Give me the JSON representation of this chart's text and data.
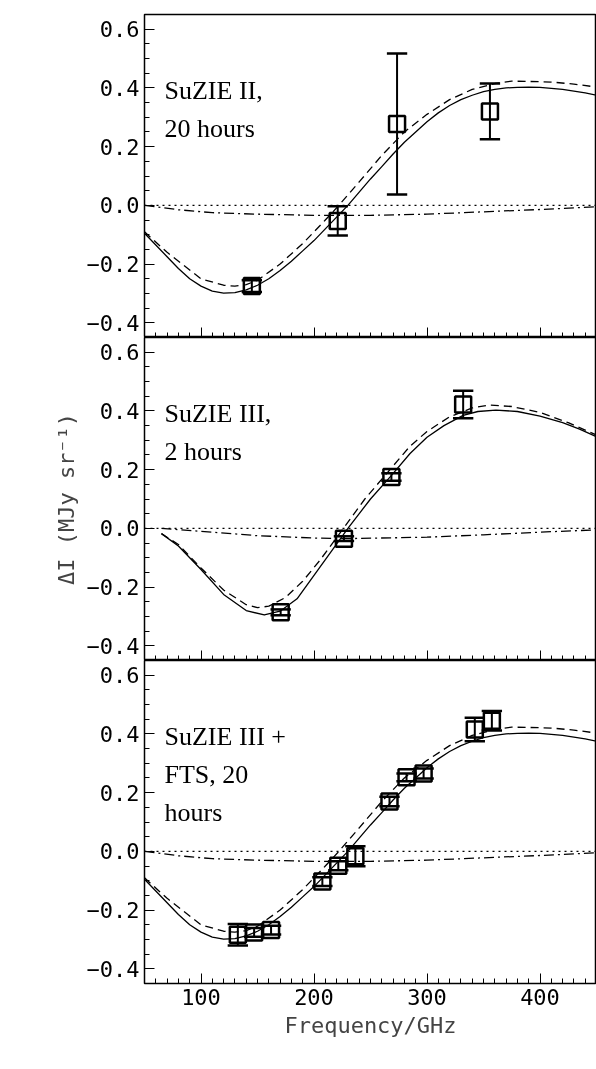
{
  "chart_data": [
    {
      "type": "scatter",
      "annotations": [
        "SuZIE II,\n20 hours"
      ],
      "xlim": [
        50,
        450
      ],
      "ylim": [
        -0.45,
        0.65
      ],
      "xticks": [
        100,
        200,
        300,
        400
      ],
      "yticks": [
        {
          "value": -0.4,
          "label": "−0.4"
        },
        {
          "value": -0.2,
          "label": "−0.2"
        },
        {
          "value": 0,
          "label": "0.0"
        },
        0.2,
        0.4,
        0.6
      ],
      "tick_labels": "y",
      "ref_lines": [
        {
          "axis": "y",
          "value": 0,
          "line_style": "dotted",
          "color": "#000000"
        }
      ],
      "series": [
        {
          "marker": "square",
          "color": "#000000",
          "x": [
            145,
            221,
            273.5,
            355.7
          ],
          "values": [
            -0.275,
            -0.053,
            0.277,
            0.32
          ],
          "errors": [
            0.02,
            0.05,
            0.24,
            0.095
          ]
        },
        {
          "type": "line",
          "line_style": "solid",
          "color": "#000000",
          "x": [
            50,
            60,
            70,
            80,
            90,
            100,
            110,
            120,
            130,
            140,
            150,
            160,
            170,
            180,
            190,
            200,
            210,
            220,
            230,
            240,
            250,
            260,
            270,
            280,
            290,
            300,
            310,
            320,
            330,
            340,
            350,
            360,
            370,
            380,
            390,
            400,
            420,
            440,
            450
          ],
          "values": [
            -0.095,
            -0.135,
            -0.175,
            -0.215,
            -0.25,
            -0.275,
            -0.292,
            -0.299,
            -0.297,
            -0.288,
            -0.272,
            -0.25,
            -0.222,
            -0.19,
            -0.155,
            -0.12,
            -0.08,
            -0.04,
            0.0,
            0.045,
            0.09,
            0.132,
            0.175,
            0.215,
            0.25,
            0.285,
            0.315,
            0.34,
            0.36,
            0.375,
            0.387,
            0.395,
            0.4,
            0.402,
            0.403,
            0.402,
            0.395,
            0.383,
            0.375
          ]
        },
        {
          "type": "line",
          "line_style": "dashed",
          "color": "#000000",
          "x": [
            50,
            70,
            100,
            120,
            130,
            140,
            150,
            170,
            190,
            210,
            222,
            240,
            260,
            280,
            300,
            320,
            340,
            360,
            375,
            390,
            410,
            430,
            450
          ],
          "values": [
            -0.09,
            -0.16,
            -0.25,
            -0.272,
            -0.275,
            -0.27,
            -0.255,
            -0.2,
            -0.13,
            -0.05,
            0.0,
            0.08,
            0.17,
            0.25,
            0.31,
            0.36,
            0.395,
            0.415,
            0.423,
            0.422,
            0.42,
            0.413,
            0.403
          ]
        },
        {
          "type": "line",
          "line_style": "dashdot",
          "color": "#000000",
          "x": [
            50,
            80,
            110,
            150,
            200,
            250,
            300,
            350,
            400,
            450
          ],
          "values": [
            0.0,
            -0.015,
            -0.025,
            -0.03,
            -0.034,
            -0.034,
            -0.03,
            -0.022,
            -0.014,
            -0.005
          ]
        }
      ]
    },
    {
      "type": "scatter",
      "ylabel": "ΔI (MJy sr⁻¹)",
      "annotations": [
        "SuZIE III,\n2 hours"
      ],
      "xlim": [
        50,
        450
      ],
      "ylim": [
        -0.45,
        0.65
      ],
      "xticks": [
        100,
        200,
        300,
        400
      ],
      "yticks": [
        {
          "value": -0.4,
          "label": "−0.4"
        },
        {
          "value": -0.2,
          "label": "−0.2"
        },
        {
          "value": 0,
          "label": "0.0"
        },
        0.2,
        0.4,
        0.6
      ],
      "tick_labels": "y",
      "ref_lines": [
        {
          "axis": "y",
          "value": 0,
          "line_style": "dotted",
          "color": "#000000"
        }
      ],
      "series": [
        {
          "marker": "square",
          "color": "#000000",
          "x": [
            170.5,
            226.5,
            268.5,
            332
          ],
          "values": [
            -0.286,
            -0.035,
            0.175,
            0.422
          ],
          "errors": [
            0.01,
            0.008,
            0.013,
            0.047
          ]
        },
        {
          "type": "line",
          "line_style": "solid",
          "color": "#000000",
          "x": [
            65,
            80,
            100,
            120,
            140,
            156,
            170,
            185,
            200,
            215,
            230,
            250,
            268,
            285,
            300,
            315,
            332,
            345,
            361,
            380,
            400,
            420,
            435,
            450
          ],
          "values": [
            -0.018,
            -0.06,
            -0.14,
            -0.225,
            -0.28,
            -0.295,
            -0.282,
            -0.24,
            -0.16,
            -0.08,
            0.0,
            0.1,
            0.178,
            0.255,
            0.31,
            0.35,
            0.385,
            0.398,
            0.403,
            0.398,
            0.382,
            0.36,
            0.338,
            0.312
          ]
        },
        {
          "type": "line",
          "line_style": "dashed",
          "color": "#000000",
          "x": [
            65,
            80,
            100,
            120,
            140,
            150,
            160,
            175,
            190,
            205,
            226,
            245,
            265,
            285,
            300,
            320,
            340,
            355,
            375,
            400,
            425,
            450
          ],
          "values": [
            -0.018,
            -0.055,
            -0.135,
            -0.21,
            -0.26,
            -0.27,
            -0.265,
            -0.235,
            -0.18,
            -0.11,
            0.0,
            0.1,
            0.19,
            0.28,
            0.33,
            0.38,
            0.41,
            0.42,
            0.415,
            0.395,
            0.36,
            0.318
          ]
        },
        {
          "type": "line",
          "line_style": "dashdot",
          "color": "#000000",
          "x": [
            65,
            100,
            150,
            200,
            230,
            300,
            350,
            400,
            450
          ],
          "values": [
            0.0,
            -0.01,
            -0.025,
            -0.033,
            -0.035,
            -0.03,
            -0.022,
            -0.013,
            -0.005
          ]
        }
      ]
    },
    {
      "type": "scatter",
      "xlabel": "Frequency/GHz",
      "annotations": [
        "SuZIE III +\nFTS, 20\nhours"
      ],
      "xlim": [
        50,
        450
      ],
      "ylim": [
        -0.45,
        0.65
      ],
      "xticks": [
        100,
        200,
        300,
        400
      ],
      "yticks": [
        {
          "value": -0.4,
          "label": "−0.4"
        },
        {
          "value": -0.2,
          "label": "−0.2"
        },
        {
          "value": 0,
          "label": "0.0"
        },
        0.2,
        0.4,
        0.6
      ],
      "ref_lines": [
        {
          "axis": "y",
          "value": 0,
          "line_style": "dotted",
          "color": "#000000"
        }
      ],
      "series": [
        {
          "marker": "square",
          "color": "#000000",
          "x": [
            132.6,
            147,
            162,
            207.4,
            221.5,
            236.6,
            266.8,
            281.9,
            297,
            342.3,
            357.4
          ],
          "values": [
            -0.284,
            -0.276,
            -0.268,
            -0.103,
            -0.049,
            -0.017,
            0.17,
            0.252,
            0.265,
            0.415,
            0.445
          ],
          "errors": [
            0.037,
            0.015,
            0.015,
            0.015,
            0.015,
            0.034,
            0.016,
            0.013,
            0.017,
            0.04,
            0.033
          ]
        },
        {
          "type": "line",
          "line_style": "solid",
          "color": "#000000",
          "x": [
            50,
            60,
            70,
            80,
            90,
            100,
            110,
            120,
            130,
            140,
            150,
            160,
            170,
            180,
            190,
            200,
            210,
            220,
            230,
            240,
            250,
            260,
            270,
            280,
            290,
            300,
            310,
            320,
            330,
            340,
            350,
            360,
            370,
            380,
            390,
            400,
            420,
            440,
            450
          ],
          "values": [
            -0.095,
            -0.135,
            -0.175,
            -0.215,
            -0.25,
            -0.275,
            -0.292,
            -0.299,
            -0.297,
            -0.288,
            -0.272,
            -0.25,
            -0.222,
            -0.19,
            -0.155,
            -0.12,
            -0.08,
            -0.04,
            0.0,
            0.045,
            0.09,
            0.132,
            0.175,
            0.215,
            0.25,
            0.285,
            0.315,
            0.34,
            0.36,
            0.375,
            0.387,
            0.395,
            0.4,
            0.402,
            0.403,
            0.402,
            0.395,
            0.383,
            0.375
          ]
        },
        {
          "type": "line",
          "line_style": "dashed",
          "color": "#000000",
          "x": [
            50,
            70,
            100,
            120,
            130,
            140,
            150,
            170,
            190,
            210,
            222,
            240,
            260,
            280,
            300,
            320,
            340,
            360,
            375,
            390,
            410,
            430,
            450
          ],
          "values": [
            -0.09,
            -0.16,
            -0.25,
            -0.272,
            -0.275,
            -0.27,
            -0.255,
            -0.2,
            -0.13,
            -0.05,
            0.0,
            0.08,
            0.17,
            0.25,
            0.31,
            0.36,
            0.395,
            0.415,
            0.423,
            0.422,
            0.42,
            0.413,
            0.403
          ]
        },
        {
          "type": "line",
          "line_style": "dashdot",
          "color": "#000000",
          "x": [
            50,
            80,
            110,
            150,
            200,
            250,
            300,
            350,
            400,
            450
          ],
          "values": [
            0.0,
            -0.015,
            -0.025,
            -0.03,
            -0.034,
            -0.034,
            -0.03,
            -0.022,
            -0.014,
            -0.005
          ]
        }
      ]
    }
  ]
}
